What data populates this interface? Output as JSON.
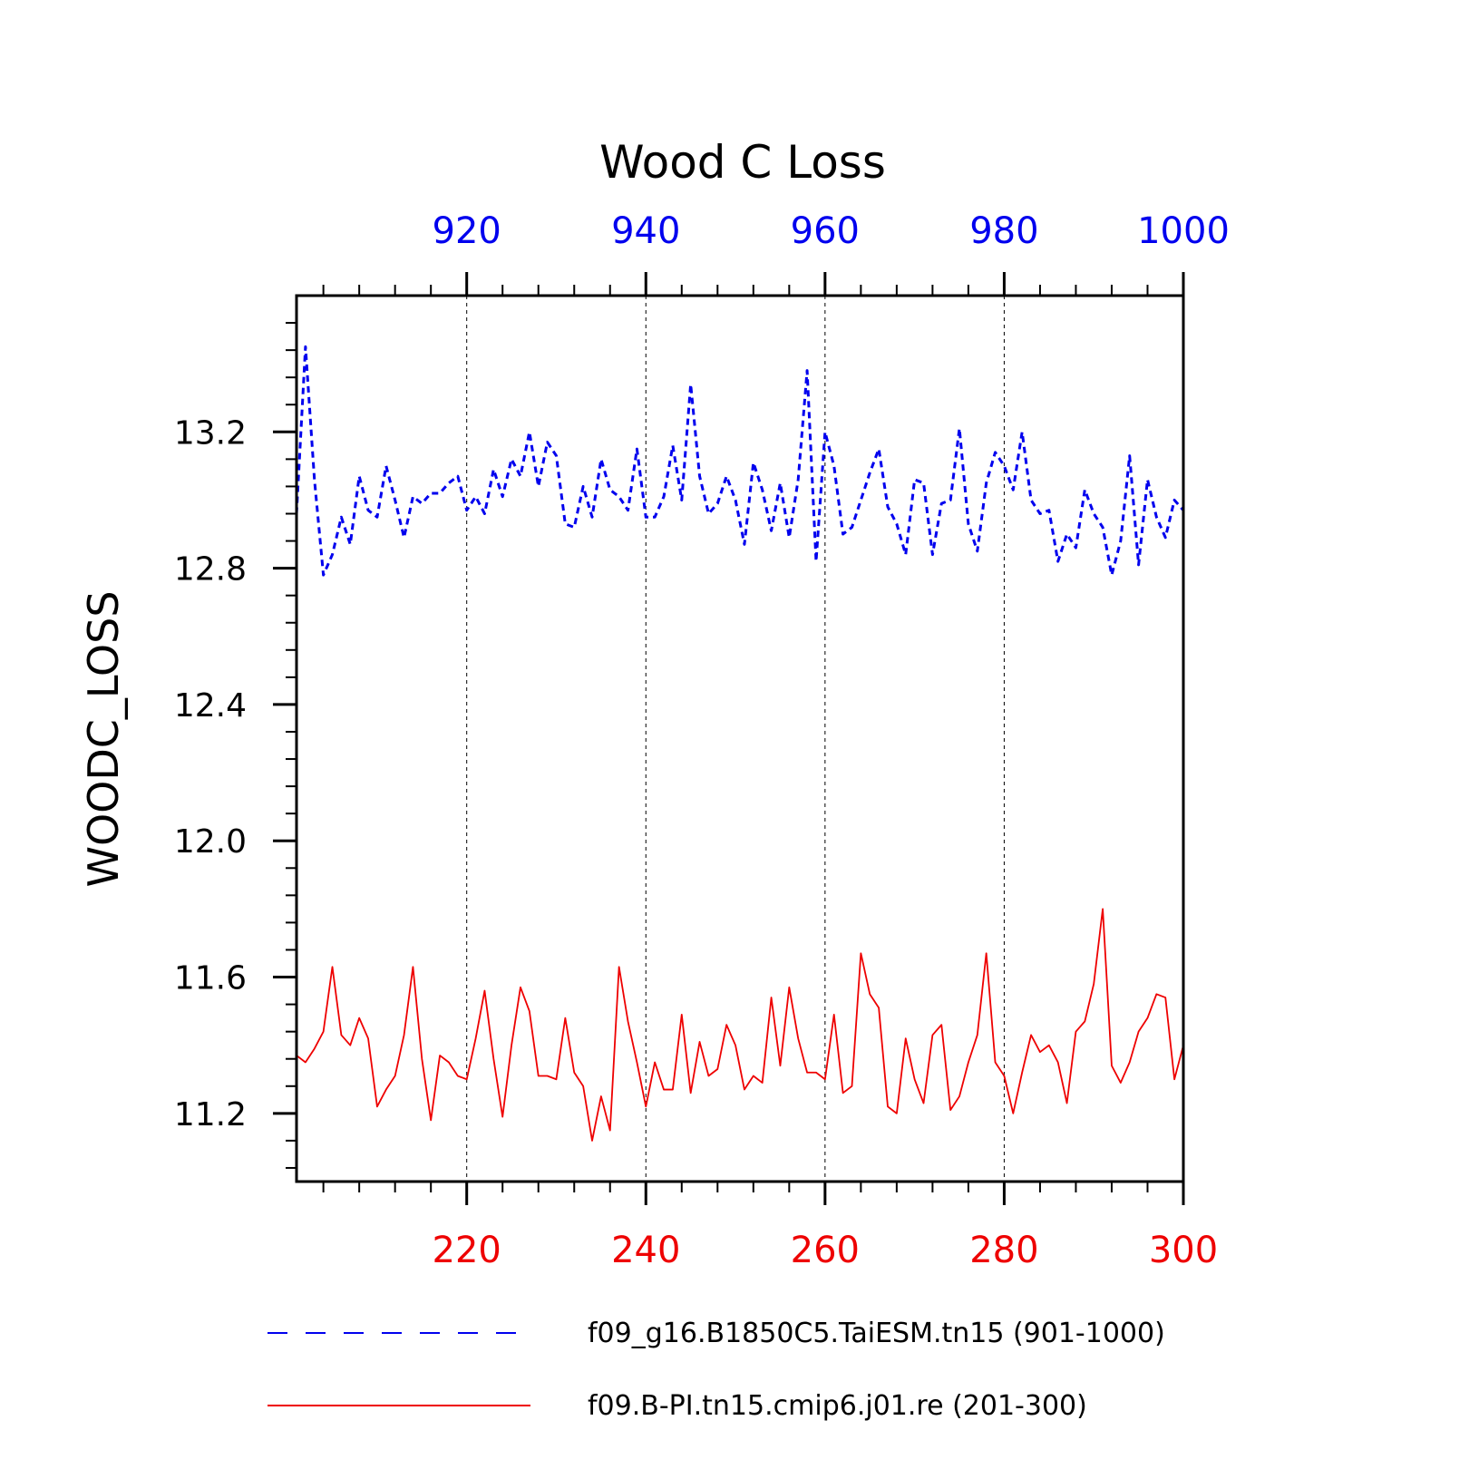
{
  "chart_data": {
    "type": "line",
    "title": "Wood C Loss",
    "ylabel": "WOODC_LOSS",
    "ylim": [
      11.0,
      13.6
    ],
    "yticks": [
      "11.2",
      "11.6",
      "12.0",
      "12.4",
      "12.8",
      "13.2"
    ],
    "grid": "vertical dashed at major x ticks",
    "legend_position": "bottom",
    "series": [
      {
        "name": "f09_g16.B1850C5.TaiESM.tn15 (901-1000)",
        "axis": "top",
        "color": "#0000ee",
        "style": "dashed",
        "xlim": [
          901,
          1000
        ],
        "xticks": [
          "920",
          "940",
          "960",
          "980",
          "1000"
        ],
        "x_start": 901,
        "values": [
          12.96,
          13.45,
          13.06,
          12.78,
          12.84,
          12.95,
          12.87,
          13.07,
          12.97,
          12.95,
          13.1,
          13.0,
          12.89,
          13.01,
          12.99,
          13.02,
          13.02,
          13.05,
          13.07,
          12.97,
          13.01,
          12.96,
          13.09,
          13.01,
          13.12,
          13.07,
          13.2,
          13.04,
          13.17,
          13.13,
          12.93,
          12.92,
          13.04,
          12.95,
          13.12,
          13.03,
          13.01,
          12.97,
          13.15,
          12.95,
          12.95,
          13.01,
          13.16,
          13.0,
          13.34,
          13.07,
          12.96,
          12.99,
          13.07,
          13.0,
          12.87,
          13.11,
          13.03,
          12.91,
          13.05,
          12.89,
          13.06,
          13.38,
          12.82,
          13.2,
          13.1,
          12.9,
          12.92,
          13.0,
          13.08,
          13.15,
          12.98,
          12.93,
          12.84,
          13.06,
          13.05,
          12.84,
          12.99,
          13.0,
          13.21,
          12.93,
          12.85,
          13.05,
          13.14,
          13.1,
          13.03,
          13.2,
          13.0,
          12.96,
          12.97,
          12.82,
          12.9,
          12.86,
          13.03,
          12.96,
          12.92,
          12.78,
          12.88,
          13.13,
          12.81,
          13.06,
          12.95,
          12.89,
          13.0,
          12.97
        ]
      },
      {
        "name": "f09.B-PI.tn15.cmip6.j01.re (201-300)",
        "axis": "bottom",
        "color": "#ee0000",
        "style": "solid",
        "xlim": [
          201,
          300
        ],
        "xticks": [
          "220",
          "240",
          "260",
          "280",
          "300"
        ],
        "x_start": 201,
        "values": [
          11.37,
          11.35,
          11.39,
          11.44,
          11.63,
          11.43,
          11.4,
          11.48,
          11.42,
          11.22,
          11.27,
          11.31,
          11.43,
          11.63,
          11.36,
          11.18,
          11.37,
          11.35,
          11.31,
          11.3,
          11.42,
          11.56,
          11.36,
          11.19,
          11.4,
          11.57,
          11.5,
          11.31,
          11.31,
          11.3,
          11.48,
          11.32,
          11.28,
          11.12,
          11.25,
          11.15,
          11.63,
          11.47,
          11.35,
          11.22,
          11.35,
          11.27,
          11.27,
          11.49,
          11.26,
          11.41,
          11.31,
          11.33,
          11.46,
          11.4,
          11.27,
          11.31,
          11.29,
          11.54,
          11.34,
          11.57,
          11.42,
          11.32,
          11.32,
          11.3,
          11.49,
          11.26,
          11.28,
          11.67,
          11.55,
          11.51,
          11.22,
          11.2,
          11.42,
          11.3,
          11.23,
          11.43,
          11.46,
          11.21,
          11.25,
          11.35,
          11.43,
          11.67,
          11.35,
          11.31,
          11.2,
          11.32,
          11.43,
          11.38,
          11.4,
          11.35,
          11.23,
          11.44,
          11.47,
          11.58,
          11.8,
          11.34,
          11.29,
          11.35,
          11.44,
          11.48,
          11.55,
          11.54,
          11.3,
          11.4
        ]
      }
    ]
  }
}
